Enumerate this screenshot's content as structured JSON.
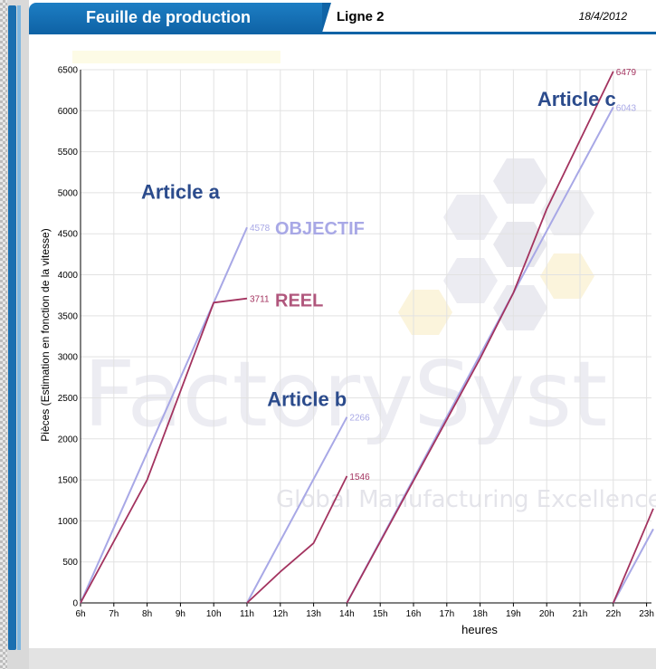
{
  "header": {
    "title": "Feuille de production",
    "line": "Ligne 2",
    "date": "18/4/2012"
  },
  "watermark": {
    "brand": "FactorySyst",
    "tagline": "Global Manufacturing Excellence"
  },
  "colors": {
    "objectif": "#a8a8e6",
    "reel": "#a3335f",
    "article_label": "#2b4b8c",
    "objectif_label": "#a8a8e6",
    "reel_label": "#b0567c",
    "header_blue": "#0f63a6"
  },
  "legend_labels": {
    "objectif": "OBJECTIF",
    "reel": "REEL"
  },
  "chart_data": {
    "type": "line",
    "xlabel": "heures",
    "ylabel": "Pièces (Estimation en fonction de la vitesse)",
    "ylim": [
      0,
      6500
    ],
    "xlim": [
      6,
      23.2
    ],
    "x_ticks": [
      "6h",
      "7h",
      "8h",
      "9h",
      "10h",
      "11h",
      "12h",
      "13h",
      "14h",
      "15h",
      "16h",
      "17h",
      "18h",
      "19h",
      "20h",
      "21h",
      "22h",
      "23h"
    ],
    "y_ticks": [
      0,
      500,
      1000,
      1500,
      2000,
      2500,
      3000,
      3500,
      4000,
      4500,
      5000,
      5500,
      6000,
      6500
    ],
    "grid": true,
    "series": [
      {
        "name": "OBJECTIF",
        "article": "Article a",
        "points": [
          [
            6,
            0
          ],
          [
            10,
            3660
          ],
          [
            11,
            4578
          ]
        ],
        "end_label": "4578"
      },
      {
        "name": "REEL",
        "article": "Article a",
        "points": [
          [
            6,
            0
          ],
          [
            8,
            1500
          ],
          [
            10,
            3660
          ],
          [
            11,
            3711
          ]
        ],
        "end_label": "3711"
      },
      {
        "name": "OBJECTIF",
        "article": "Article b",
        "points": [
          [
            11,
            0
          ],
          [
            14,
            2266
          ]
        ],
        "end_label": "2266"
      },
      {
        "name": "REEL",
        "article": "Article b",
        "points": [
          [
            11,
            0
          ],
          [
            12,
            380
          ],
          [
            13,
            730
          ],
          [
            14,
            1546
          ]
        ],
        "end_label": "1546"
      },
      {
        "name": "OBJECTIF",
        "article": "Article c",
        "points": [
          [
            14,
            0
          ],
          [
            19,
            3780
          ],
          [
            22,
            6043
          ]
        ],
        "end_label": "6043"
      },
      {
        "name": "REEL",
        "article": "Article c",
        "points": [
          [
            14,
            0
          ],
          [
            18,
            2980
          ],
          [
            19,
            3780
          ],
          [
            20,
            4800
          ],
          [
            22,
            6479
          ]
        ],
        "end_label": "6479"
      },
      {
        "name": "OBJECTIF",
        "article": "",
        "points": [
          [
            22,
            0
          ],
          [
            23.2,
            900
          ]
        ],
        "end_label": ""
      },
      {
        "name": "REEL",
        "article": "",
        "points": [
          [
            22,
            0
          ],
          [
            23.2,
            1150
          ]
        ],
        "end_label": ""
      }
    ],
    "annotations": [
      {
        "text": "Article a",
        "at": [
          9.0,
          4930
        ]
      },
      {
        "text": "Article b",
        "at": [
          12.8,
          2400
        ]
      },
      {
        "text": "Article c",
        "at": [
          20.9,
          6060
        ]
      }
    ]
  }
}
